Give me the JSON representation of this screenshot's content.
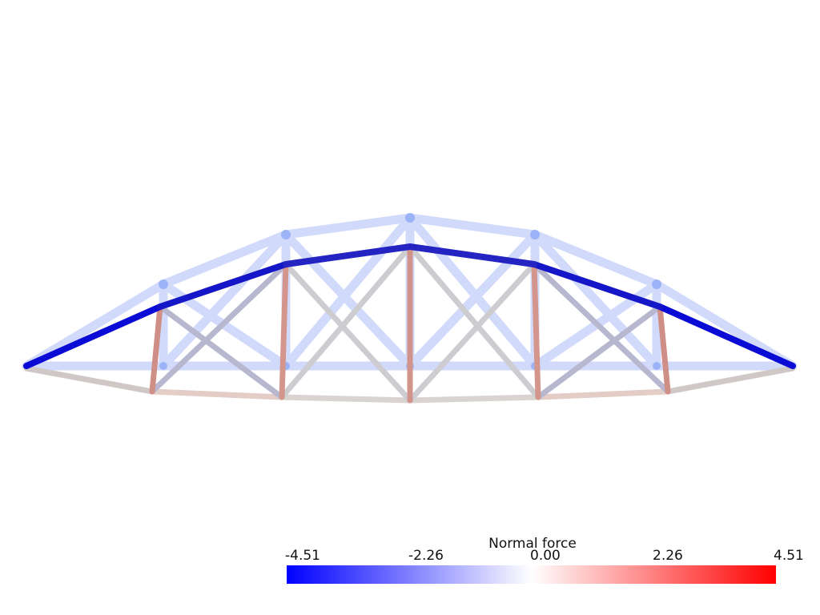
{
  "colorbar": {
    "title": "Normal force",
    "ticks": [
      "-4.51",
      "-2.26",
      "0.00",
      "2.26",
      "4.51"
    ],
    "colors": [
      "#0000ff",
      "#ffffff",
      "#ff0000"
    ]
  },
  "truss": {
    "deformed_color": "#c9d4fb",
    "node_color": "#9bb3f7"
  }
}
